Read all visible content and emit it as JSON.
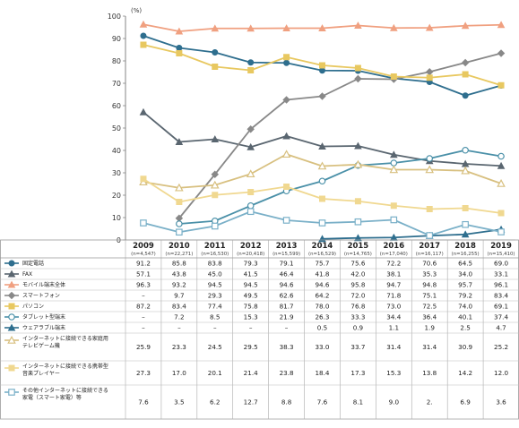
{
  "chart_data": {
    "type": "line",
    "y_unit": "(%)",
    "ylim": [
      0,
      100
    ],
    "y_ticks": [
      0,
      10,
      20,
      30,
      40,
      50,
      60,
      70,
      80,
      90,
      100
    ],
    "categories": [
      "2009",
      "2010",
      "2011",
      "2012",
      "2013",
      "2014",
      "2015",
      "2016",
      "2017",
      "2018",
      "2019"
    ],
    "sample_sizes": [
      "(n=4,547)",
      "(n=22,271)",
      "(n=16,530)",
      "(n=20,418)",
      "(n=15,599)",
      "(n=16,529)",
      "(n=14,765)",
      "(n=17,040)",
      "(n=16,117)",
      "(n=16,255)",
      "(n=15,410)"
    ],
    "grid": false,
    "legend": "table-below",
    "series": [
      {
        "name": "固定電話",
        "color": "#2e6e8e",
        "marker": "circle",
        "labels": [
          "91.2",
          "85.8",
          "83.8",
          "79.3",
          "79.1",
          "75.7",
          "75.6",
          "72.2",
          "70.6",
          "64.5",
          "69.0"
        ],
        "values": [
          91.2,
          85.8,
          83.8,
          79.3,
          79.1,
          75.7,
          75.6,
          72.2,
          70.6,
          64.5,
          69.0
        ]
      },
      {
        "name": "FAX",
        "color": "#5a6670",
        "marker": "triangle",
        "labels": [
          "57.1",
          "43.8",
          "45.0",
          "41.5",
          "46.4",
          "41.8",
          "42.0",
          "38.1",
          "35.3",
          "34.0",
          "33.1"
        ],
        "values": [
          57.1,
          43.8,
          45.0,
          41.5,
          46.4,
          41.8,
          42.0,
          38.1,
          35.3,
          34.0,
          33.1
        ]
      },
      {
        "name": "モバイル端末全体",
        "color": "#f0a080",
        "marker": "triangle",
        "labels": [
          "96.3",
          "93.2",
          "94.5",
          "94.5",
          "94.6",
          "94.6",
          "95.8",
          "94.7",
          "94.8",
          "95.7",
          "96.1"
        ],
        "values": [
          96.3,
          93.2,
          94.5,
          94.5,
          94.6,
          94.6,
          95.8,
          94.7,
          94.8,
          95.7,
          96.1
        ]
      },
      {
        "name": "スマートフォン",
        "color": "#888888",
        "marker": "diamond",
        "labels": [
          "–",
          "9.7",
          "29.3",
          "49.5",
          "62.6",
          "64.2",
          "72.0",
          "71.8",
          "75.1",
          "79.2",
          "83.4"
        ],
        "values": [
          null,
          9.7,
          29.3,
          49.5,
          62.6,
          64.2,
          72.0,
          71.8,
          75.1,
          79.2,
          83.4
        ]
      },
      {
        "name": "パソコン",
        "color": "#e8c860",
        "marker": "square",
        "labels": [
          "87.2",
          "83.4",
          "77.4",
          "75.8",
          "81.7",
          "78.0",
          "76.8",
          "73.0",
          "72.5",
          "74.0",
          "69.1"
        ],
        "values": [
          87.2,
          83.4,
          77.4,
          75.8,
          81.7,
          78.0,
          76.8,
          73.0,
          72.5,
          74.0,
          69.1
        ]
      },
      {
        "name": "タブレット型端末",
        "color": "#4a90a8",
        "marker": "circle-open",
        "labels": [
          "–",
          "7.2",
          "8.5",
          "15.3",
          "21.9",
          "26.3",
          "33.3",
          "34.4",
          "36.4",
          "40.1",
          "37.4"
        ],
        "values": [
          null,
          7.2,
          8.5,
          15.3,
          21.9,
          26.3,
          33.3,
          34.4,
          36.4,
          40.1,
          37.4
        ]
      },
      {
        "name": "ウェアラブル端末",
        "color": "#2e6e8e",
        "marker": "triangle",
        "labels": [
          "–",
          "–",
          "–",
          "–",
          "–",
          "0.5",
          "0.9",
          "1.1",
          "1.9",
          "2.5",
          "4.7"
        ],
        "values": [
          null,
          null,
          null,
          null,
          null,
          0.5,
          0.9,
          1.1,
          1.9,
          2.5,
          4.7
        ]
      },
      {
        "name": "インターネットに接続できる家庭用テレビゲーム機",
        "color": "#d8c080",
        "marker": "triangle-open",
        "labels": [
          "25.9",
          "23.3",
          "24.5",
          "29.5",
          "38.3",
          "33.0",
          "33.7",
          "31.4",
          "31.4",
          "30.9",
          "25.2"
        ],
        "values": [
          25.9,
          23.3,
          24.5,
          29.5,
          38.3,
          33.0,
          33.7,
          31.4,
          31.4,
          30.9,
          25.2
        ]
      },
      {
        "name": "インターネットに接続できる携帯型音楽プレイヤー",
        "color": "#f0d890",
        "marker": "square",
        "labels": [
          "27.3",
          "17.0",
          "20.1",
          "21.4",
          "23.8",
          "18.4",
          "17.3",
          "15.3",
          "13.8",
          "14.2",
          "12.0"
        ],
        "values": [
          27.3,
          17.0,
          20.1,
          21.4,
          23.8,
          18.4,
          17.3,
          15.3,
          13.8,
          14.2,
          12.0
        ]
      },
      {
        "name": "その他インターネットに接続できる家電（スマート家電）等",
        "color": "#7ab0c8",
        "marker": "square-open",
        "labels": [
          "7.6",
          "3.5",
          "6.2",
          "12.7",
          "8.8",
          "7.6",
          "8.1",
          "9.0",
          "2.",
          "6.9",
          "3.6"
        ],
        "values": [
          7.6,
          3.5,
          6.2,
          12.7,
          8.8,
          7.6,
          8.1,
          9.0,
          2.0,
          6.9,
          3.6
        ]
      }
    ]
  }
}
